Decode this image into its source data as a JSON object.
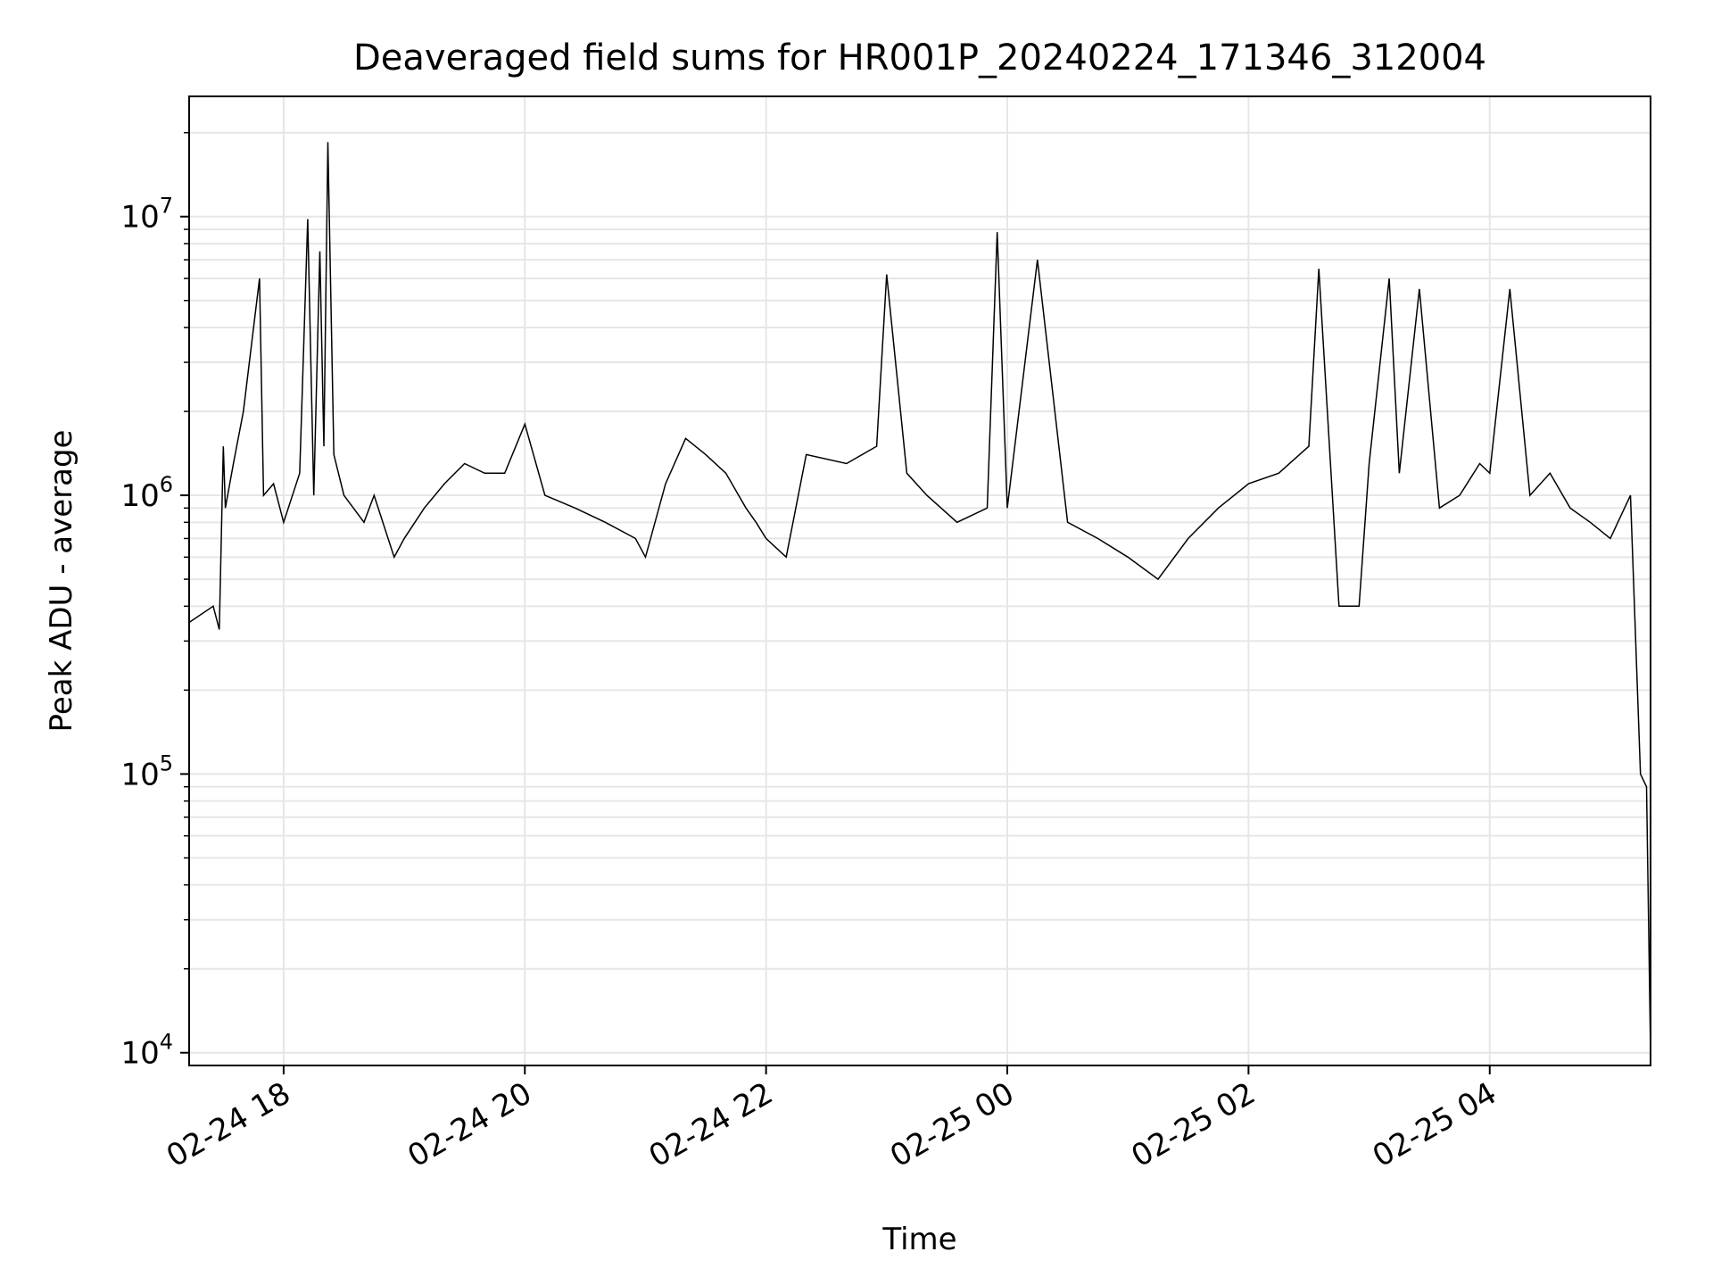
{
  "chart_data": {
    "type": "line",
    "title": "Deaveraged field sums for HR001P_20240224_171346_312004",
    "xlabel": "Time",
    "ylabel": "Peak ADU - average",
    "yscale": "log",
    "ylim": [
      9000,
      27000000
    ],
    "xlim": [
      "2024-02-24 17:13",
      "2024-02-25 05:20"
    ],
    "grid": true,
    "line_color": "#000000",
    "grid_color": "#e6e6e6",
    "x_ticks": [
      {
        "value": "2024-02-24 18:00",
        "label": "02-24 18"
      },
      {
        "value": "2024-02-24 20:00",
        "label": "02-24 20"
      },
      {
        "value": "2024-02-24 22:00",
        "label": "02-24 22"
      },
      {
        "value": "2024-02-25 00:00",
        "label": "02-25 00"
      },
      {
        "value": "2024-02-25 02:00",
        "label": "02-25 02"
      },
      {
        "value": "2024-02-25 04:00",
        "label": "02-25 04"
      }
    ],
    "y_ticks": [
      {
        "value": 10000,
        "base": "10",
        "exp": "4"
      },
      {
        "value": 100000,
        "base": "10",
        "exp": "5"
      },
      {
        "value": 1000000,
        "base": "10",
        "exp": "6"
      },
      {
        "value": 10000000,
        "base": "10",
        "exp": "7"
      }
    ],
    "series": [
      {
        "x": [
          "2024-02-24 17:13",
          "2024-02-24 17:25",
          "2024-02-24 17:28",
          "2024-02-24 17:30",
          "2024-02-24 17:31",
          "2024-02-24 17:35",
          "2024-02-24 17:40",
          "2024-02-24 17:48",
          "2024-02-24 17:50",
          "2024-02-24 17:55",
          "2024-02-24 18:00",
          "2024-02-24 18:08",
          "2024-02-24 18:12",
          "2024-02-24 18:15",
          "2024-02-24 18:18",
          "2024-02-24 18:20",
          "2024-02-24 18:22",
          "2024-02-24 18:25",
          "2024-02-24 18:30",
          "2024-02-24 18:40",
          "2024-02-24 18:45",
          "2024-02-24 18:55",
          "2024-02-24 19:00",
          "2024-02-24 19:10",
          "2024-02-24 19:20",
          "2024-02-24 19:30",
          "2024-02-24 19:40",
          "2024-02-24 19:50",
          "2024-02-24 20:00",
          "2024-02-24 20:10",
          "2024-02-24 20:25",
          "2024-02-24 20:40",
          "2024-02-24 20:55",
          "2024-02-24 21:00",
          "2024-02-24 21:10",
          "2024-02-24 21:20",
          "2024-02-24 21:30",
          "2024-02-24 21:40",
          "2024-02-24 21:50",
          "2024-02-24 21:55",
          "2024-02-24 22:00",
          "2024-02-24 22:10",
          "2024-02-24 22:20",
          "2024-02-24 22:40",
          "2024-02-24 22:55",
          "2024-02-24 23:00",
          "2024-02-24 23:10",
          "2024-02-24 23:20",
          "2024-02-24 23:35",
          "2024-02-24 23:50",
          "2024-02-24 23:55",
          "2024-02-25 00:00",
          "2024-02-25 00:15",
          "2024-02-25 00:30",
          "2024-02-25 00:45",
          "2024-02-25 01:00",
          "2024-02-25 01:15",
          "2024-02-25 01:30",
          "2024-02-25 01:45",
          "2024-02-25 02:00",
          "2024-02-25 02:15",
          "2024-02-25 02:30",
          "2024-02-25 02:35",
          "2024-02-25 02:45",
          "2024-02-25 02:55",
          "2024-02-25 03:00",
          "2024-02-25 03:10",
          "2024-02-25 03:15",
          "2024-02-25 03:25",
          "2024-02-25 03:35",
          "2024-02-25 03:45",
          "2024-02-25 03:55",
          "2024-02-25 04:00",
          "2024-02-25 04:10",
          "2024-02-25 04:20",
          "2024-02-25 04:30",
          "2024-02-25 04:40",
          "2024-02-25 04:50",
          "2024-02-25 05:00",
          "2024-02-25 05:10",
          "2024-02-25 05:15",
          "2024-02-25 05:18",
          "2024-02-25 05:20"
        ],
        "y": [
          350000,
          400000,
          330000,
          1500000,
          900000,
          1300000,
          2000000,
          6000000,
          1000000,
          1100000,
          800000,
          1200000,
          9800000,
          1000000,
          7500000,
          1500000,
          18500000,
          1400000,
          1000000,
          800000,
          1000000,
          600000,
          700000,
          900000,
          1100000,
          1300000,
          1200000,
          1200000,
          1800000,
          1000000,
          900000,
          800000,
          700000,
          600000,
          1100000,
          1600000,
          1400000,
          1200000,
          900000,
          800000,
          700000,
          600000,
          1400000,
          1300000,
          1500000,
          6200000,
          1200000,
          1000000,
          800000,
          900000,
          8800000,
          900000,
          7000000,
          800000,
          700000,
          600000,
          500000,
          700000,
          900000,
          1100000,
          1200000,
          1500000,
          6500000,
          400000,
          400000,
          1300000,
          6000000,
          1200000,
          5500000,
          900000,
          1000000,
          1300000,
          1200000,
          5500000,
          1000000,
          1200000,
          900000,
          800000,
          700000,
          1000000,
          100000,
          90000,
          10000
        ]
      }
    ]
  }
}
